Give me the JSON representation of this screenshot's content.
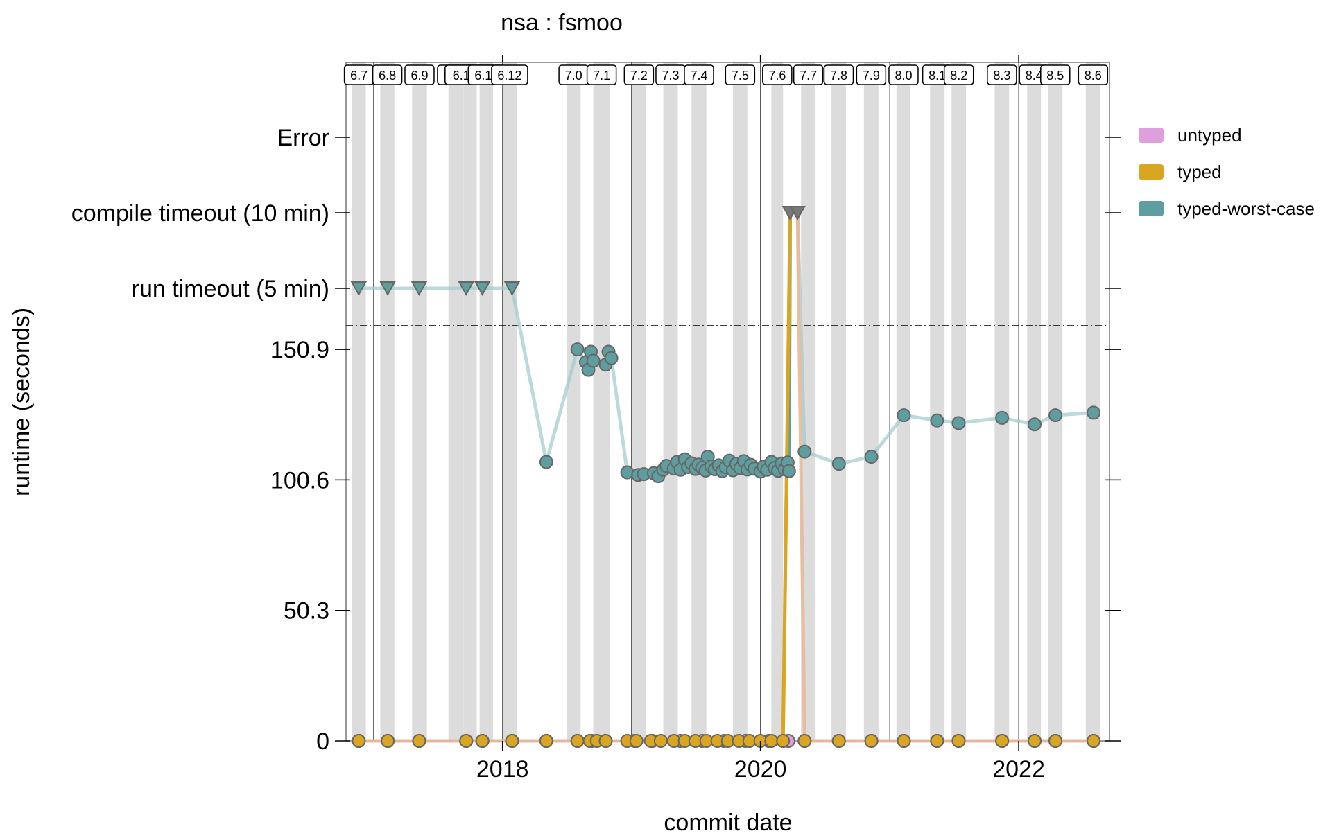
{
  "chart_data": {
    "type": "line",
    "title": "nsa : fsmoo",
    "xlabel": "commit date",
    "ylabel": "runtime (seconds)",
    "x_type": "date",
    "xlim": [
      "2016-10-15",
      "2022-09-15"
    ],
    "x_ticks": [
      "2018",
      "2020",
      "2022"
    ],
    "y_ticks": [
      0,
      50.3,
      100.6,
      150.9
    ],
    "y_tick_labels": [
      "0",
      "50.3",
      "100.6",
      "150.9"
    ],
    "ylim": [
      0,
      160
    ],
    "y_categories": [
      "run timeout (5 min)",
      "compile timeout (10 min)",
      "Error"
    ],
    "grid": false,
    "legend_position": "right",
    "year_lines": [
      "2017-01-01",
      "2018-01-01",
      "2019-01-01",
      "2020-01-01",
      "2021-01-01",
      "2022-01-01"
    ],
    "releases": [
      {
        "label": "6.7",
        "start": "2016-11-01",
        "end": "2016-12-10"
      },
      {
        "label": "6.8",
        "start": "2017-01-20",
        "end": "2017-03-01"
      },
      {
        "label": "6.9",
        "start": "2017-04-20",
        "end": "2017-06-01"
      },
      {
        "label": "6.10",
        "start": "2017-08-01",
        "end": "2017-09-10"
      },
      {
        "label": "6.10.1",
        "start": "2017-09-12",
        "end": "2017-10-20"
      },
      {
        "label": "6.11",
        "start": "2017-10-28",
        "end": "2017-12-05"
      },
      {
        "label": "6.12",
        "start": "2018-01-01",
        "end": "2018-02-10"
      },
      {
        "label": "7.0",
        "start": "2018-07-01",
        "end": "2018-08-10"
      },
      {
        "label": "7.1",
        "start": "2018-09-15",
        "end": "2018-11-01"
      },
      {
        "label": "7.2",
        "start": "2019-01-01",
        "end": "2019-02-12"
      },
      {
        "label": "7.3",
        "start": "2019-04-01",
        "end": "2019-05-12"
      },
      {
        "label": "7.4",
        "start": "2019-06-20",
        "end": "2019-08-01"
      },
      {
        "label": "7.5",
        "start": "2019-10-15",
        "end": "2019-11-25"
      },
      {
        "label": "7.6",
        "start": "2020-02-01",
        "end": "2020-03-05"
      },
      {
        "label": "7.7",
        "start": "2020-04-25",
        "end": "2020-06-05"
      },
      {
        "label": "7.8",
        "start": "2020-07-20",
        "end": "2020-08-30"
      },
      {
        "label": "7.9",
        "start": "2020-10-20",
        "end": "2020-11-30"
      },
      {
        "label": "8.0",
        "start": "2021-01-20",
        "end": "2021-03-01"
      },
      {
        "label": "8.1",
        "start": "2021-04-25",
        "end": "2021-06-05"
      },
      {
        "label": "8.2",
        "start": "2021-06-25",
        "end": "2021-08-05"
      },
      {
        "label": "8.3",
        "start": "2021-10-25",
        "end": "2021-12-05"
      },
      {
        "label": "8.4",
        "start": "2022-01-25",
        "end": "2022-03-05"
      },
      {
        "label": "8.5",
        "start": "2022-03-25",
        "end": "2022-05-05"
      },
      {
        "label": "8.6",
        "start": "2022-07-10",
        "end": "2022-08-20"
      }
    ],
    "series": [
      {
        "name": "untyped",
        "color": "#DDA0DD",
        "points": [
          {
            "x": "2016-11-20",
            "y": 0
          },
          {
            "x": "2017-02-10",
            "y": 0
          },
          {
            "x": "2017-05-10",
            "y": 0
          },
          {
            "x": "2017-09-20",
            "y": 0
          },
          {
            "x": "2017-11-05",
            "y": 0
          },
          {
            "x": "2018-01-28",
            "y": 0
          },
          {
            "x": "2018-05-05",
            "y": 0
          },
          {
            "x": "2018-08-01",
            "y": 0
          },
          {
            "x": "2018-09-10",
            "y": 0
          },
          {
            "x": "2018-10-20",
            "y": 0
          },
          {
            "x": "2019-01-10",
            "y": 0
          },
          {
            "x": "2019-03-01",
            "y": 0
          },
          {
            "x": "2019-05-20",
            "y": 0
          },
          {
            "x": "2019-07-20",
            "y": 0
          },
          {
            "x": "2019-09-20",
            "y": 0
          },
          {
            "x": "2019-11-20",
            "y": 0
          },
          {
            "x": "2020-01-25",
            "y": 0
          },
          {
            "x": "2020-03-20",
            "y": 0
          },
          {
            "x": "2020-05-05",
            "y": 0
          },
          {
            "x": "2020-08-10",
            "y": 0
          },
          {
            "x": "2020-11-10",
            "y": 0
          },
          {
            "x": "2021-02-10",
            "y": 0
          },
          {
            "x": "2021-05-15",
            "y": 0
          },
          {
            "x": "2021-07-15",
            "y": 0
          },
          {
            "x": "2021-11-15",
            "y": 0
          },
          {
            "x": "2022-02-15",
            "y": 0
          },
          {
            "x": "2022-04-15",
            "y": 0
          },
          {
            "x": "2022-08-01",
            "y": 0
          }
        ]
      },
      {
        "name": "typed",
        "color": "#DAA520",
        "points": [
          {
            "x": "2016-11-20",
            "y": 0
          },
          {
            "x": "2017-02-10",
            "y": 0
          },
          {
            "x": "2017-05-10",
            "y": 0
          },
          {
            "x": "2017-09-20",
            "y": 0
          },
          {
            "x": "2017-11-05",
            "y": 0
          },
          {
            "x": "2018-01-28",
            "y": 0
          },
          {
            "x": "2018-05-05",
            "y": 0
          },
          {
            "x": "2018-08-01",
            "y": 0
          },
          {
            "x": "2018-09-05",
            "y": 0
          },
          {
            "x": "2018-09-25",
            "y": 0
          },
          {
            "x": "2018-10-20",
            "y": 0
          },
          {
            "x": "2018-12-20",
            "y": 0
          },
          {
            "x": "2019-01-15",
            "y": 0
          },
          {
            "x": "2019-02-25",
            "y": 0
          },
          {
            "x": "2019-03-25",
            "y": 0
          },
          {
            "x": "2019-05-01",
            "y": 0
          },
          {
            "x": "2019-06-01",
            "y": 0
          },
          {
            "x": "2019-07-01",
            "y": 0
          },
          {
            "x": "2019-08-01",
            "y": 0
          },
          {
            "x": "2019-09-01",
            "y": 0
          },
          {
            "x": "2019-10-01",
            "y": 0
          },
          {
            "x": "2019-11-01",
            "y": 0
          },
          {
            "x": "2019-12-01",
            "y": 0
          },
          {
            "x": "2020-01-01",
            "y": 0
          },
          {
            "x": "2020-02-01",
            "y": 0
          },
          {
            "x": "2020-03-05",
            "y": 0
          },
          {
            "x": "2020-03-25",
            "y": "compile timeout (10 min)"
          },
          {
            "x": "2020-04-15",
            "y": "compile timeout (10 min)"
          },
          {
            "x": "2020-05-05",
            "y": 0
          },
          {
            "x": "2020-08-10",
            "y": 0
          },
          {
            "x": "2020-11-10",
            "y": 0
          },
          {
            "x": "2021-02-10",
            "y": 0
          },
          {
            "x": "2021-05-15",
            "y": 0
          },
          {
            "x": "2021-07-15",
            "y": 0
          },
          {
            "x": "2021-11-15",
            "y": 0
          },
          {
            "x": "2022-02-15",
            "y": 0
          },
          {
            "x": "2022-04-15",
            "y": 0
          },
          {
            "x": "2022-08-01",
            "y": 0
          }
        ]
      },
      {
        "name": "typed-worst-case",
        "color": "#5F9EA0",
        "points": [
          {
            "x": "2016-11-20",
            "y": "run timeout (5 min)"
          },
          {
            "x": "2017-02-10",
            "y": "run timeout (5 min)"
          },
          {
            "x": "2017-05-10",
            "y": "run timeout (5 min)"
          },
          {
            "x": "2017-09-20",
            "y": "run timeout (5 min)"
          },
          {
            "x": "2017-11-05",
            "y": "run timeout (5 min)"
          },
          {
            "x": "2018-01-28",
            "y": "run timeout (5 min)"
          },
          {
            "x": "2018-05-05",
            "y": 107.5
          },
          {
            "x": "2018-08-01",
            "y": 150.9
          },
          {
            "x": "2018-08-25",
            "y": 146
          },
          {
            "x": "2018-09-01",
            "y": 143
          },
          {
            "x": "2018-09-08",
            "y": 150
          },
          {
            "x": "2018-09-15",
            "y": 146.5
          },
          {
            "x": "2018-10-20",
            "y": 145
          },
          {
            "x": "2018-10-28",
            "y": 150
          },
          {
            "x": "2018-11-05",
            "y": 147.5
          },
          {
            "x": "2018-12-20",
            "y": 103.5
          },
          {
            "x": "2019-01-20",
            "y": 102.5
          },
          {
            "x": "2019-02-05",
            "y": 102.8
          },
          {
            "x": "2019-03-05",
            "y": 103.2
          },
          {
            "x": "2019-03-18",
            "y": 102
          },
          {
            "x": "2019-04-01",
            "y": 104.5
          },
          {
            "x": "2019-04-10",
            "y": 106
          },
          {
            "x": "2019-05-01",
            "y": 105
          },
          {
            "x": "2019-05-10",
            "y": 107.5
          },
          {
            "x": "2019-05-20",
            "y": 104.5
          },
          {
            "x": "2019-06-01",
            "y": 108.5
          },
          {
            "x": "2019-06-10",
            "y": 105.5
          },
          {
            "x": "2019-06-20",
            "y": 107
          },
          {
            "x": "2019-07-01",
            "y": 104.8
          },
          {
            "x": "2019-07-10",
            "y": 106.5
          },
          {
            "x": "2019-07-20",
            "y": 105.3
          },
          {
            "x": "2019-07-30",
            "y": 104.2
          },
          {
            "x": "2019-08-05",
            "y": 109.5
          },
          {
            "x": "2019-08-15",
            "y": 105.8
          },
          {
            "x": "2019-08-25",
            "y": 104.7
          },
          {
            "x": "2019-09-05",
            "y": 106.2
          },
          {
            "x": "2019-09-15",
            "y": 104
          },
          {
            "x": "2019-09-25",
            "y": 105.5
          },
          {
            "x": "2019-10-05",
            "y": 108
          },
          {
            "x": "2019-10-15",
            "y": 104.3
          },
          {
            "x": "2019-10-25",
            "y": 106.8
          },
          {
            "x": "2019-11-05",
            "y": 105.1
          },
          {
            "x": "2019-11-15",
            "y": 107.8
          },
          {
            "x": "2019-11-25",
            "y": 104.6
          },
          {
            "x": "2019-12-05",
            "y": 106.4
          },
          {
            "x": "2019-12-15",
            "y": 104.9
          },
          {
            "x": "2020-01-01",
            "y": 103.8
          },
          {
            "x": "2020-01-10",
            "y": 105.7
          },
          {
            "x": "2020-01-20",
            "y": 104.5
          },
          {
            "x": "2020-02-01",
            "y": 107.5
          },
          {
            "x": "2020-02-10",
            "y": 105.2
          },
          {
            "x": "2020-02-20",
            "y": 104.1
          },
          {
            "x": "2020-03-01",
            "y": 106.9
          },
          {
            "x": "2020-03-10",
            "y": 104.7
          },
          {
            "x": "2020-03-18",
            "y": 107.3
          },
          {
            "x": "2020-03-22",
            "y": 104
          },
          {
            "x": "2020-03-25",
            "y": "compile timeout (10 min)"
          },
          {
            "x": "2020-04-15",
            "y": "compile timeout (10 min)"
          },
          {
            "x": "2020-05-05",
            "y": 111.5
          },
          {
            "x": "2020-08-10",
            "y": 106.8
          },
          {
            "x": "2020-11-10",
            "y": 109.5
          },
          {
            "x": "2021-02-10",
            "y": 125.5
          },
          {
            "x": "2021-05-15",
            "y": 123.5
          },
          {
            "x": "2021-07-15",
            "y": 122.5
          },
          {
            "x": "2021-11-15",
            "y": 124.5
          },
          {
            "x": "2022-02-15",
            "y": 122
          },
          {
            "x": "2022-04-15",
            "y": 125.5
          },
          {
            "x": "2022-08-01",
            "y": 126.5
          }
        ]
      }
    ]
  }
}
